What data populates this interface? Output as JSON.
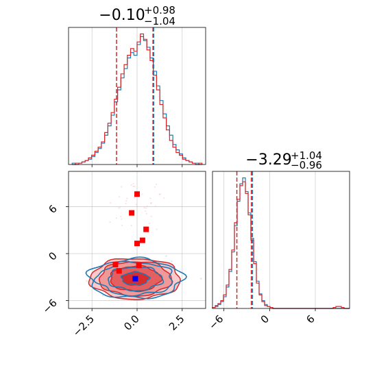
{
  "chart_data": [
    {
      "panel": "hist-param-1",
      "type": "histogram",
      "title": {
        "median": "-0.10",
        "plus": "+0.98",
        "minus": "-1.04"
      },
      "xlim": [
        -3.8,
        3.8
      ],
      "xticks": [
        -2.5,
        0.0,
        2.5
      ],
      "grid": true,
      "bin_edges_start": -3.6,
      "bin_width": 0.18,
      "series": [
        {
          "color": "#1f77b4",
          "counts": [
            1,
            0,
            1,
            2,
            3,
            4,
            6,
            9,
            12,
            16,
            22,
            29,
            37,
            47,
            56,
            65,
            72,
            80,
            84,
            82,
            90,
            96,
            93,
            88,
            80,
            70,
            59,
            48,
            38,
            29,
            22,
            15,
            11,
            8,
            5,
            3,
            2,
            1,
            1,
            0
          ]
        },
        {
          "color": "#d62728",
          "counts": [
            0,
            1,
            1,
            2,
            3,
            5,
            7,
            10,
            13,
            17,
            24,
            31,
            39,
            49,
            58,
            68,
            75,
            82,
            87,
            85,
            92,
            98,
            94,
            86,
            78,
            67,
            56,
            45,
            35,
            26,
            18,
            13,
            9,
            7,
            4,
            3,
            2,
            1,
            0,
            1
          ]
        }
      ],
      "quantile_lines": [
        {
          "color": "#d62728",
          "values": [
            -1.14,
            0.88
          ]
        },
        {
          "color": "#1f77b4",
          "values": [
            0.92
          ]
        }
      ]
    },
    {
      "panel": "scatter-contour",
      "type": "scatter",
      "xlim": [
        -3.8,
        3.8
      ],
      "ylim": [
        -7,
        10.5
      ],
      "xticks": [
        -2.5,
        0.0,
        2.5
      ],
      "xtick_labels": [
        "−2.5",
        "0.0",
        "2.5"
      ],
      "yticks": [
        -6,
        0,
        6
      ],
      "ytick_labels": [
        "−6",
        "0",
        "6"
      ],
      "grid": true,
      "red_points": [
        [
          0.0,
          7.6
        ],
        [
          -0.3,
          5.2
        ],
        [
          0.5,
          3.1
        ],
        [
          0.3,
          1.7
        ],
        [
          0.0,
          1.3
        ],
        [
          -1.2,
          -1.4
        ],
        [
          0.1,
          -1.5
        ],
        [
          -1.0,
          -2.2
        ]
      ],
      "blue_points": [
        [
          -0.1,
          -3.2
        ]
      ],
      "contours_red": {
        "center": [
          -0.1,
          -3.2
        ],
        "radii": [
          [
            0.7,
            0.85
          ],
          [
            1.4,
            1.6
          ],
          [
            2.0,
            2.2
          ],
          [
            2.5,
            2.6
          ]
        ]
      },
      "contours_blue": {
        "center": [
          -0.1,
          -3.2
        ],
        "radii": [
          [
            0.75,
            0.8
          ],
          [
            1.5,
            1.5
          ],
          [
            2.1,
            2.1
          ],
          [
            2.6,
            2.5
          ]
        ]
      }
    },
    {
      "panel": "hist-param-2",
      "type": "histogram",
      "title": {
        "median": "-3.29",
        "plus": "+1.04",
        "minus": "-0.96"
      },
      "xlim": [
        -7.5,
        10.5
      ],
      "xticks": [
        -6,
        0,
        6
      ],
      "xtick_labels": [
        "−6",
        "0",
        "6"
      ],
      "grid": true,
      "bin_edges_start": -7.5,
      "bin_width": 0.36,
      "series": [
        {
          "color": "#1f77b4",
          "counts": [
            1,
            2,
            4,
            7,
            12,
            22,
            38,
            58,
            85,
            110,
            128,
            134,
            120,
            98,
            72,
            48,
            28,
            15,
            8,
            4,
            2,
            1,
            0,
            0,
            0,
            0,
            0,
            0,
            0,
            0,
            0,
            0,
            0,
            0,
            0,
            0,
            0,
            0,
            0,
            0,
            0,
            0,
            0,
            0,
            0,
            0,
            0,
            0,
            0,
            0
          ]
        },
        {
          "color": "#d62728",
          "counts": [
            1,
            3,
            5,
            8,
            14,
            24,
            40,
            60,
            88,
            112,
            126,
            130,
            118,
            96,
            70,
            46,
            26,
            14,
            7,
            3,
            2,
            1,
            0,
            0,
            0,
            0,
            0,
            0,
            0,
            0,
            0,
            0,
            0,
            0,
            0,
            0,
            0,
            0,
            0,
            0,
            0,
            0,
            0,
            0,
            1,
            2,
            2,
            1,
            0,
            0
          ]
        }
      ],
      "quantile_lines": [
        {
          "color": "#d62728",
          "values": [
            -4.3,
            -2.4
          ]
        },
        {
          "color": "#1f77b4",
          "values": [
            -2.25
          ]
        }
      ]
    }
  ]
}
